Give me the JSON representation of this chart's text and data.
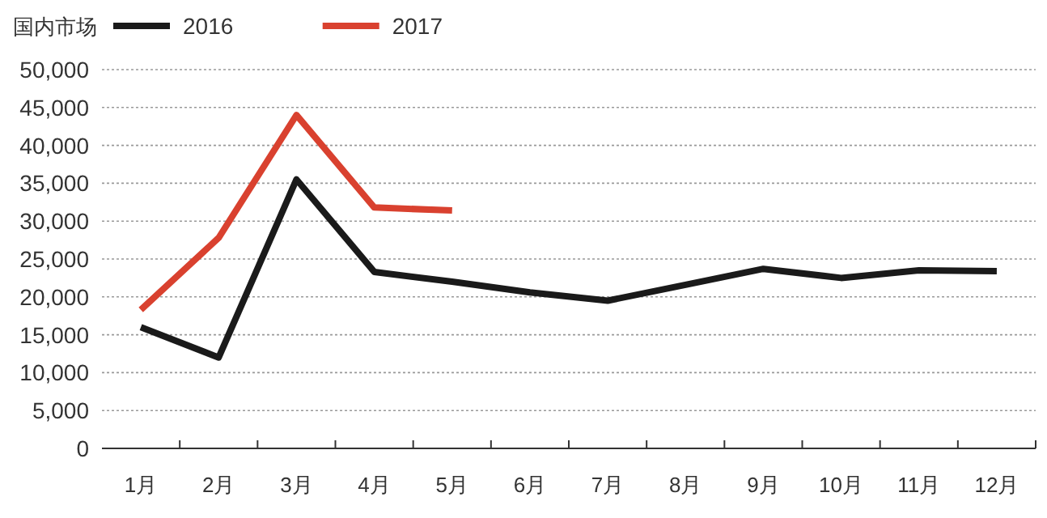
{
  "chart_data": {
    "type": "line",
    "legend_title": "国内市场",
    "legend": "top left",
    "grid": "y",
    "categories": [
      "1月",
      "2月",
      "3月",
      "4月",
      "5月",
      "6月",
      "7月",
      "8月",
      "9月",
      "10月",
      "11月",
      "12月"
    ],
    "series": [
      {
        "name": "2016",
        "color": "#1a1a1a",
        "values": [
          16000,
          12000,
          35500,
          23300,
          22000,
          20600,
          19500,
          21600,
          23700,
          22500,
          23500,
          23400
        ]
      },
      {
        "name": "2017",
        "color": "#d9412f",
        "values": [
          18300,
          27800,
          44000,
          31800,
          31400,
          null,
          null,
          null,
          null,
          null,
          null,
          null
        ]
      }
    ],
    "ylim": [
      0,
      50000
    ],
    "yticks": [
      {
        "value": 0,
        "label": "0"
      },
      {
        "value": 5000,
        "label": "5,000"
      },
      {
        "value": 10000,
        "label": "10,000"
      },
      {
        "value": 15000,
        "label": "15,000"
      },
      {
        "value": 20000,
        "label": "20,000"
      },
      {
        "value": 25000,
        "label": "25,000"
      },
      {
        "value": 30000,
        "label": "30,000"
      },
      {
        "value": 35000,
        "label": "35,000"
      },
      {
        "value": 40000,
        "label": "40,000"
      },
      {
        "value": 45000,
        "label": "45,000"
      },
      {
        "value": 50000,
        "label": "50,000"
      }
    ]
  }
}
